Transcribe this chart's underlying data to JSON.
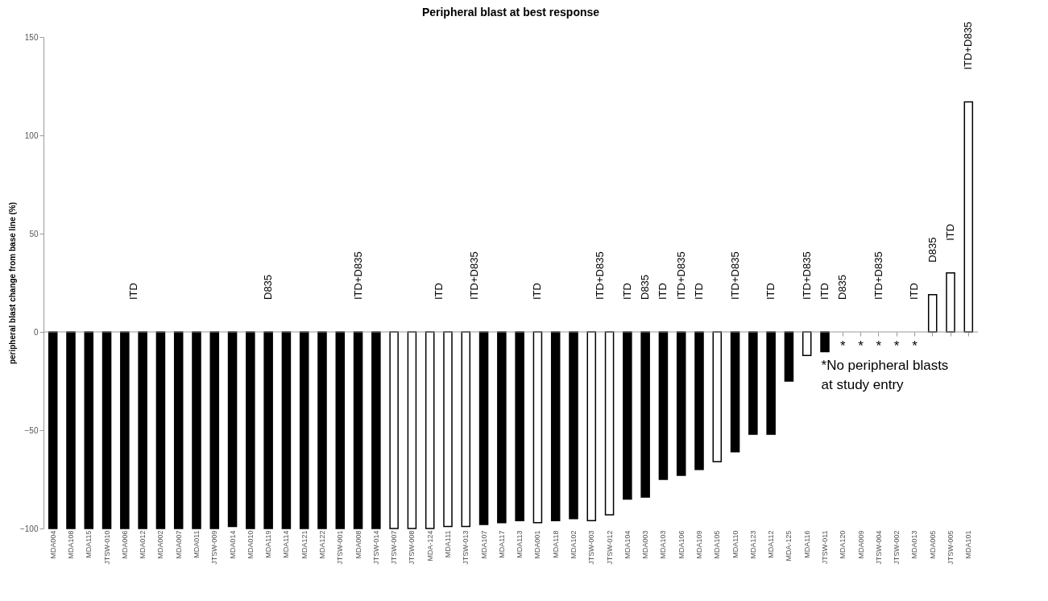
{
  "chart_data": {
    "type": "bar",
    "title": "Peripheral blast at best response",
    "ylabel": "peripheral blast change from base line (%)",
    "categories": [
      "MDA004",
      "MDA108",
      "MDA115",
      "JTSW-010",
      "MDA006",
      "MDA012",
      "MDA002",
      "MDA007",
      "MDA011",
      "JTSW-009",
      "MDA014",
      "MDA010",
      "MDA119",
      "MDA114",
      "MDA121",
      "MDA122",
      "JTSW-001",
      "MDA008",
      "JTSW-014",
      "JTSW-007",
      "JTSW-008",
      "MDA-124",
      "MDA111",
      "JTSW-013",
      "MDA107",
      "MDA117",
      "MDA113",
      "MDA001",
      "MDA118",
      "MDA102",
      "JTSW-003",
      "JTSW-012",
      "MDA104",
      "MDA003",
      "MDA103",
      "MDA106",
      "MDA109",
      "MDA105",
      "MDA110",
      "MDA123",
      "MDA112",
      "MDA-125",
      "MDA116",
      "JTSW-011",
      "MDA120",
      "MDA009",
      "JTSW-004",
      "JTSW-002",
      "MDA013",
      "MDA005",
      "JTSW-005",
      "MDA101"
    ],
    "values": [
      -100,
      -100,
      -100,
      -100,
      -100,
      -100,
      -100,
      -100,
      -100,
      -100,
      -99,
      -100,
      -100,
      -100,
      -100,
      -100,
      -100,
      -100,
      -100,
      -100,
      -100,
      -100,
      -99,
      -99,
      -98,
      -97,
      -96,
      -97,
      -96,
      -95,
      -96,
      -93,
      -85,
      -84,
      -75,
      -73,
      -70,
      -66,
      -61,
      -52,
      -52,
      -25,
      -12,
      -10,
      null,
      null,
      null,
      null,
      null,
      19,
      30,
      117
    ],
    "colors": [
      "#000000",
      "#000000",
      "#000000",
      "#000000",
      "#000000",
      "#000000",
      "#000000",
      "#000000",
      "#000000",
      "#000000",
      "#000000",
      "#000000",
      "#000000",
      "#000000",
      "#000000",
      "#000000",
      "#000000",
      "#000000",
      "#000000",
      "#ffffff",
      "#ffffff",
      "#ffffff",
      "#ffffff",
      "#ffffff",
      "#000000",
      "#000000",
      "#000000",
      "#ffffff",
      "#000000",
      "#000000",
      "#ffffff",
      "#ffffff",
      "#000000",
      "#000000",
      "#000000",
      "#000000",
      "#000000",
      "#ffffff",
      "#000000",
      "#000000",
      "#000000",
      "#000000",
      "#ffffff",
      "#000000",
      "#000000",
      "#000000",
      "#000000",
      "#000000",
      "#000000",
      "#ffffff",
      "#ffffff",
      "#ffffff"
    ],
    "ylim": [
      -100,
      150
    ],
    "yticks": [
      -100,
      -50,
      0,
      50,
      100,
      150
    ],
    "grid": false,
    "legend": false,
    "ref_lines": [
      {
        "axis": "y",
        "value": 0,
        "color": "#999999"
      }
    ],
    "annotations": [
      "ITD",
      "D835",
      "ITD+D835",
      "ITD",
      "ITD+D835",
      "ITD",
      "ITD+D835",
      "ITD",
      "D835",
      "ITD",
      "ITD+D835",
      "ITD",
      "ITD+D835",
      "ITD",
      "ITD+D835",
      "ITD",
      "D835",
      "ITD+D835",
      "ITD",
      "D835",
      "ITD",
      "ITD+D835",
      "*",
      "*",
      "*",
      "*",
      "*",
      "*No peripheral blasts at study entry"
    ]
  }
}
